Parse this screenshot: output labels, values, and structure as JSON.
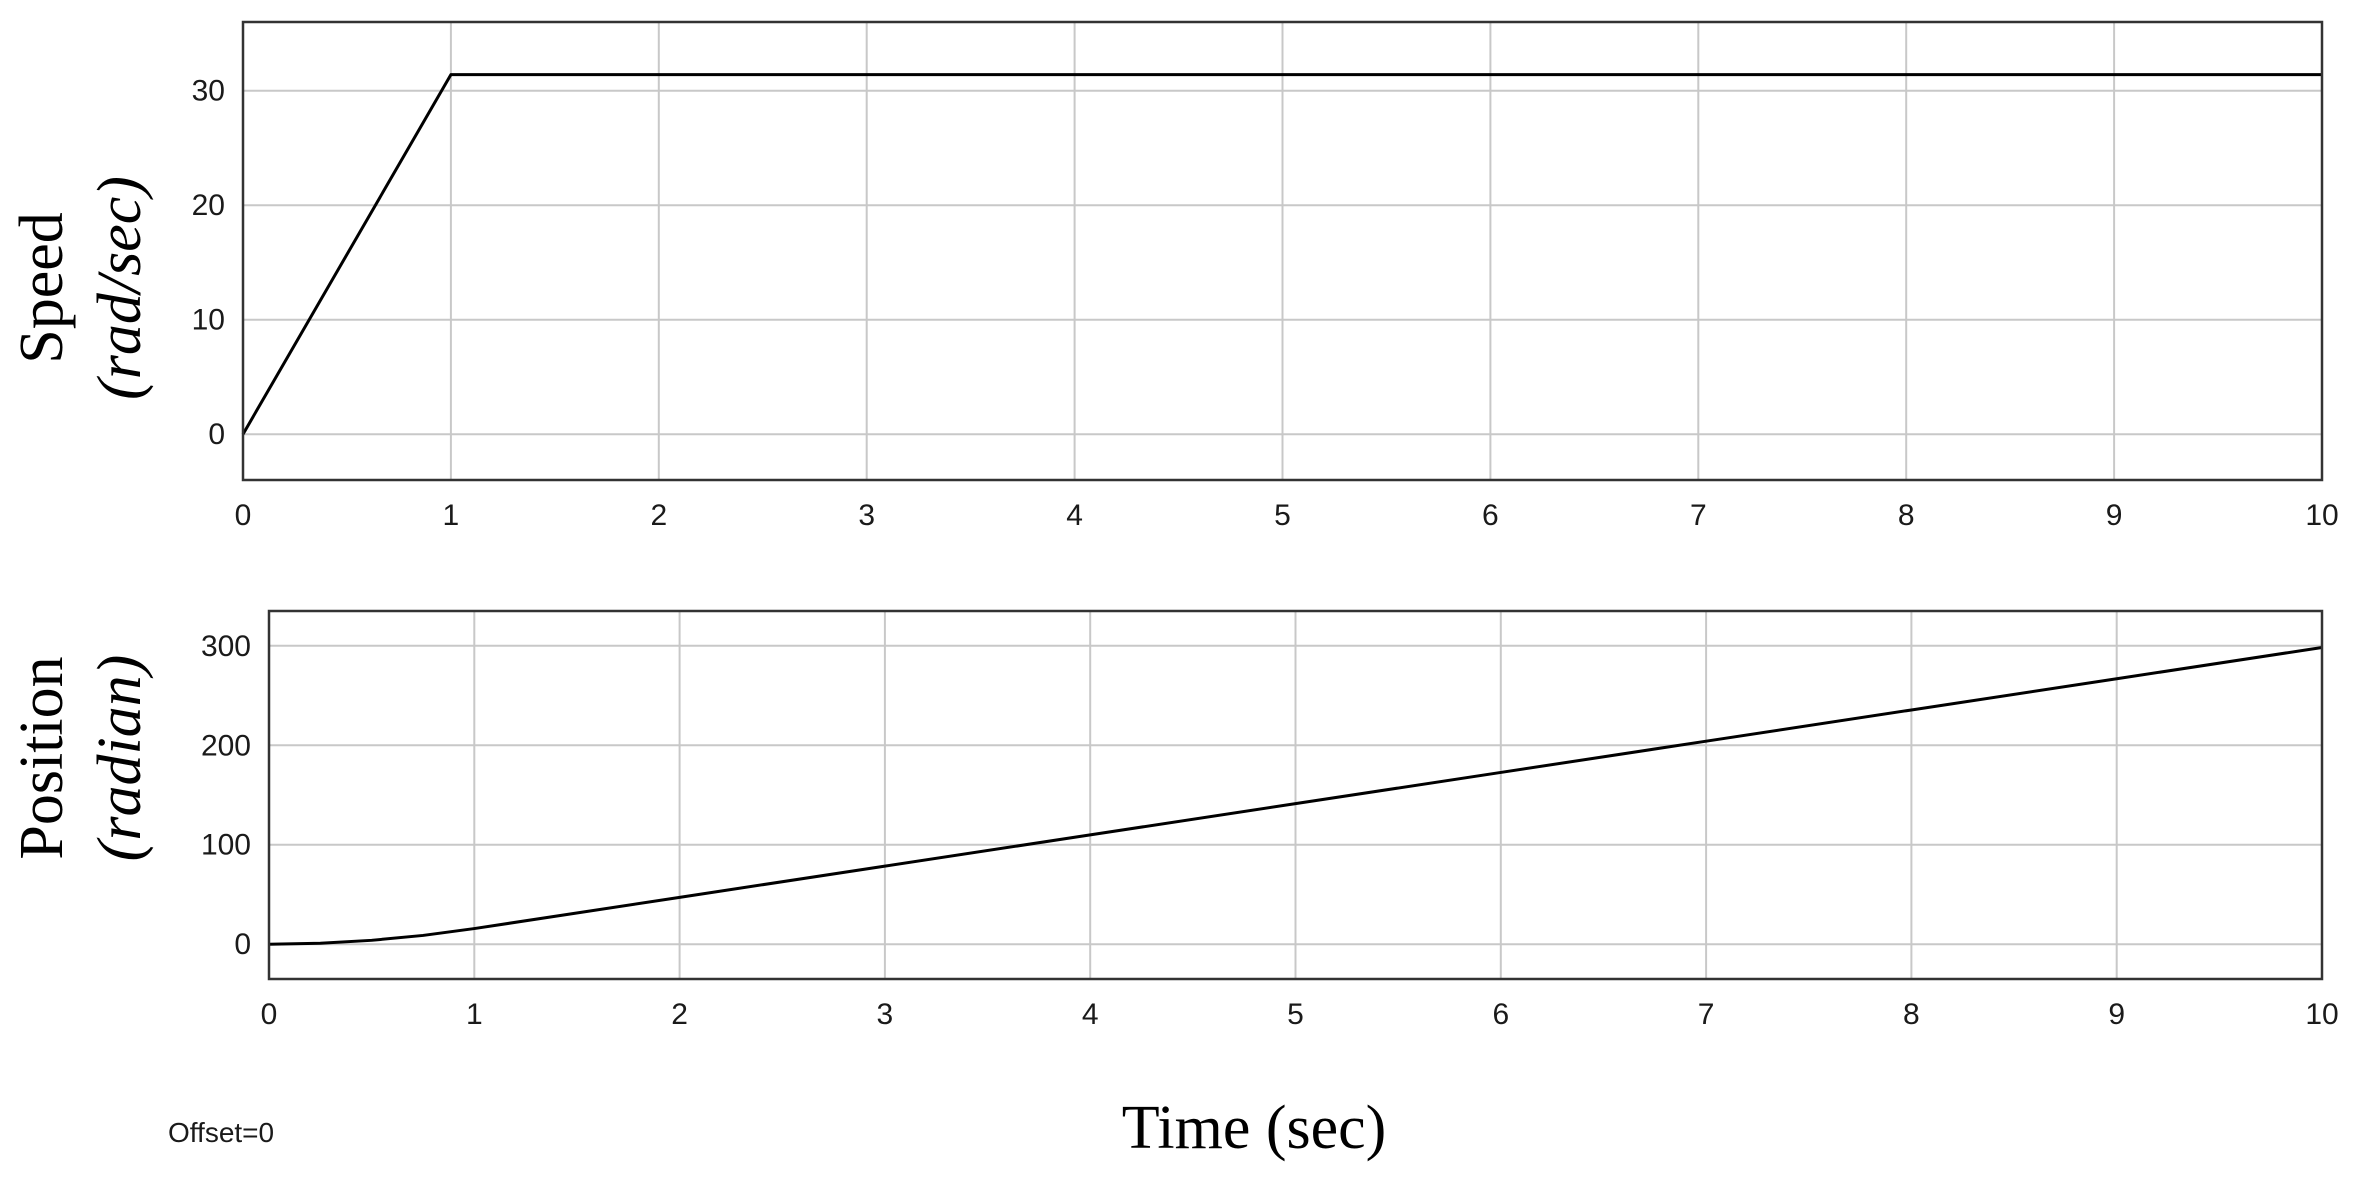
{
  "chart_data": [
    {
      "type": "line",
      "ylabel": "Speed",
      "ylabel_unit": "(rad/sec)",
      "xlabel": "",
      "xlim": [
        0,
        10
      ],
      "ylim": [
        -4,
        36
      ],
      "xticks": [
        "0",
        "1",
        "2",
        "3",
        "4",
        "5",
        "6",
        "7",
        "8",
        "9",
        "10"
      ],
      "yticks": [
        "0",
        "10",
        "20",
        "30"
      ],
      "grid": true,
      "series": [
        {
          "x": [
            0,
            1,
            10
          ],
          "y": [
            0,
            31.4,
            31.4
          ],
          "color": "#000000"
        }
      ]
    },
    {
      "type": "line",
      "ylabel": "Position",
      "ylabel_unit": "(radian)",
      "xlabel": "Time (sec)",
      "xlim": [
        0,
        10
      ],
      "ylim": [
        -35,
        335
      ],
      "xticks": [
        "0",
        "1",
        "2",
        "3",
        "4",
        "5",
        "6",
        "7",
        "8",
        "9",
        "10"
      ],
      "yticks": [
        "0",
        "100",
        "200",
        "300"
      ],
      "grid": true,
      "series": [
        {
          "x": [
            0,
            0.25,
            0.5,
            0.75,
            1,
            2,
            3,
            4,
            5,
            6,
            7,
            8,
            9,
            10
          ],
          "y": [
            0,
            1,
            3.9,
            8.8,
            15.7,
            47.1,
            78.5,
            109.9,
            141.3,
            172.7,
            204.1,
            235.5,
            266.9,
            298.3
          ],
          "color": "#000000"
        }
      ]
    }
  ],
  "offset_text": "Offset=0",
  "colors": {
    "grid": "#c8c8c8",
    "axes": "#333333",
    "line": "#000000",
    "background": "#ffffff"
  }
}
